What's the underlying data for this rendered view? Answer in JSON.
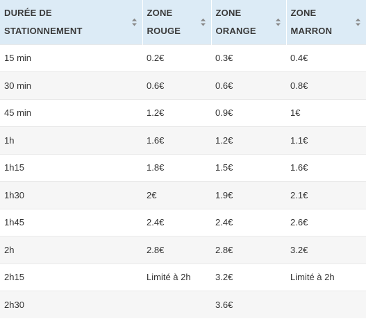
{
  "table": {
    "headers": [
      {
        "line1": "DURÉE DE",
        "line2": "STATIONNEMENT"
      },
      {
        "line1": "ZONE",
        "line2": "ROUGE"
      },
      {
        "line1": "ZONE",
        "line2": "ORANGE"
      },
      {
        "line1": "ZONE",
        "line2": "MARRON"
      }
    ],
    "rows": [
      [
        "15 min",
        "0.2€",
        "0.3€",
        "0.4€"
      ],
      [
        "30 min",
        "0.6€",
        "0.6€",
        "0.8€"
      ],
      [
        "45 min",
        "1.2€",
        "0.9€",
        "1€"
      ],
      [
        "1h",
        "1.6€",
        "1.2€",
        "1.1€"
      ],
      [
        "1h15",
        "1.8€",
        "1.5€",
        "1.6€"
      ],
      [
        "1h30",
        "2€",
        "1.9€",
        "2.1€"
      ],
      [
        "1h45",
        "2.4€",
        "2.4€",
        "2.6€"
      ],
      [
        "2h",
        "2.8€",
        "2.8€",
        "3.2€"
      ],
      [
        "2h15",
        "Limité à 2h",
        "3.2€",
        "Limité à 2h"
      ],
      [
        "2h30",
        "",
        "3.6€",
        ""
      ]
    ]
  },
  "icons": {
    "sort": "sort-icon"
  },
  "colors": {
    "header_bg": "#dcebf6",
    "row_alt_bg": "#f6f6f6",
    "text": "#333333"
  }
}
